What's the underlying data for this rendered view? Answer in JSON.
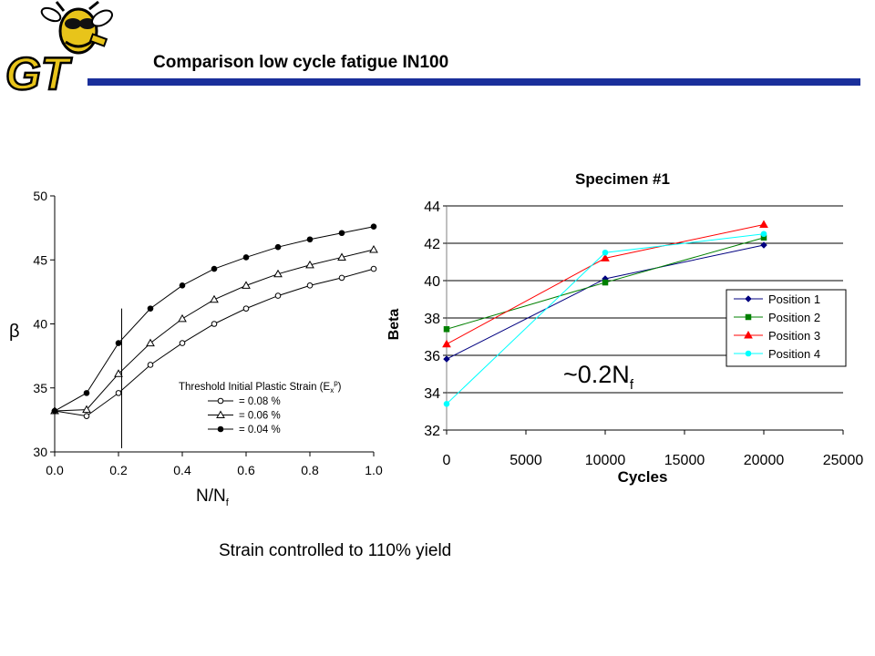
{
  "slide": {
    "title": "Comparison low cycle fatigue IN100",
    "caption": "Strain controlled to 110% yield",
    "logo_text": "GT",
    "accent_color": "#1a2f9b"
  },
  "chart_data": [
    {
      "type": "line",
      "xlabel": "N/N",
      "xlabel_sub": "f",
      "ylabel": "β",
      "xlim": [
        0.0,
        1.0
      ],
      "ylim": [
        30,
        50
      ],
      "xticks": [
        "0.0",
        "0.2",
        "0.4",
        "0.6",
        "0.8",
        "1.0"
      ],
      "yticks": [
        "30",
        "35",
        "40",
        "45",
        "50"
      ],
      "x": [
        0.0,
        0.1,
        0.2,
        0.3,
        0.4,
        0.5,
        0.6,
        0.7,
        0.8,
        0.9,
        1.0
      ],
      "legend_title": "Threshold Initial Plastic Strain (E",
      "legend_title_sub": "x",
      "legend_title_sup": "p",
      "legend_title_end": ")",
      "legend_position": "lower-right",
      "grid": false,
      "annotation": "vertical line at N/Nf = 0.21",
      "series": [
        {
          "name": "= 0.08 %",
          "marker": "open-circle",
          "values": [
            33.2,
            32.8,
            34.6,
            36.8,
            38.5,
            40.0,
            41.2,
            42.2,
            43.0,
            43.6,
            44.3
          ]
        },
        {
          "name": "= 0.06 %",
          "marker": "open-triangle",
          "values": [
            33.2,
            33.3,
            36.1,
            38.5,
            40.4,
            41.9,
            43.0,
            43.9,
            44.6,
            45.2,
            45.8
          ]
        },
        {
          "name": "= 0.04 %",
          "marker": "filled-circle",
          "values": [
            33.2,
            34.6,
            38.5,
            41.2,
            43.0,
            44.3,
            45.2,
            46.0,
            46.6,
            47.1,
            47.6
          ]
        }
      ]
    },
    {
      "type": "line",
      "title": "Specimen #1",
      "xlabel": "Cycles",
      "ylabel": "Beta",
      "xlim": [
        0,
        25000
      ],
      "ylim": [
        32,
        44
      ],
      "xticks": [
        "0",
        "5000",
        "10000",
        "15000",
        "20000",
        "25000"
      ],
      "yticks": [
        "32",
        "34",
        "36",
        "38",
        "40",
        "42",
        "44"
      ],
      "x": [
        0,
        10000,
        20000
      ],
      "grid": true,
      "legend_position": "right",
      "annotation": "~0.2N",
      "annotation_sub": "f",
      "series": [
        {
          "name": "Position 1",
          "color": "#000080",
          "marker": "diamond",
          "values": [
            35.8,
            40.1,
            41.9
          ]
        },
        {
          "name": "Position 2",
          "color": "#008000",
          "marker": "square",
          "values": [
            37.4,
            39.9,
            42.3
          ]
        },
        {
          "name": "Position 3",
          "color": "#ff0000",
          "marker": "triangle",
          "values": [
            36.6,
            41.2,
            43.0
          ]
        },
        {
          "name": "Position 4",
          "color": "#00ffff",
          "marker": "circle",
          "values": [
            33.4,
            41.5,
            42.5
          ]
        }
      ]
    }
  ]
}
